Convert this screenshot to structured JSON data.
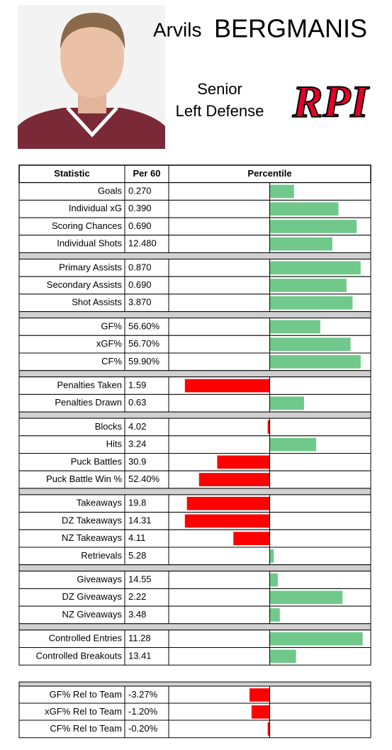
{
  "header": {
    "first_name": "Arvils",
    "last_name": "BERGMANIS",
    "class": "Senior",
    "position": "Left Defense",
    "logo": "RPI"
  },
  "table": {
    "columns": [
      "Statistic",
      "Per 60",
      "Percentile"
    ],
    "groups": [
      [
        {
          "stat": "Goals",
          "per60": "0.270",
          "percentile": 62
        },
        {
          "stat": "Individual xG",
          "per60": "0.390",
          "percentile": 84
        },
        {
          "stat": "Scoring Chances",
          "per60": "0.690",
          "percentile": 93
        },
        {
          "stat": "Individual Shots",
          "per60": "12.480",
          "percentile": 81
        }
      ],
      [
        {
          "stat": "Primary Assists",
          "per60": "0.870",
          "percentile": 95
        },
        {
          "stat": "Secondary Assists",
          "per60": "0.690",
          "percentile": 88
        },
        {
          "stat": "Shot Assists",
          "per60": "3.870",
          "percentile": 91
        }
      ],
      [
        {
          "stat": "GF%",
          "per60": "56.60%",
          "percentile": 75
        },
        {
          "stat": "xGF%",
          "per60": "56.70%",
          "percentile": 90
        },
        {
          "stat": "CF%",
          "per60": "59.90%",
          "percentile": 95
        }
      ],
      [
        {
          "stat": "Penalties Taken",
          "per60": "1.59",
          "percentile": 8
        },
        {
          "stat": "Penalties Drawn",
          "per60": "0.63",
          "percentile": 67
        }
      ],
      [
        {
          "stat": "Blocks",
          "per60": "4.02",
          "percentile": 49
        },
        {
          "stat": "Hits",
          "per60": "3.24",
          "percentile": 73
        },
        {
          "stat": "Puck Battles",
          "per60": "30.9",
          "percentile": 24
        },
        {
          "stat": "Puck Battle Win %",
          "per60": "52.40%",
          "percentile": 15
        }
      ],
      [
        {
          "stat": "Takeaways",
          "per60": "19.8",
          "percentile": 9
        },
        {
          "stat": "DZ Takeaways",
          "per60": "14.31",
          "percentile": 8
        },
        {
          "stat": "NZ Takeaways",
          "per60": "4.11",
          "percentile": 32
        },
        {
          "stat": "Retrievals",
          "per60": "5.28",
          "percentile": 52
        }
      ],
      [
        {
          "stat": "Giveaways",
          "per60": "14.55",
          "percentile": 54
        },
        {
          "stat": "DZ Giveaways",
          "per60": "2.22",
          "percentile": 86
        },
        {
          "stat": "NZ Giveaways",
          "per60": "3.48",
          "percentile": 55
        }
      ],
      [
        {
          "stat": "Controlled Entries",
          "per60": "11.28",
          "percentile": 96
        },
        {
          "stat": "Controlled Breakouts",
          "per60": "13.41",
          "percentile": 63
        }
      ]
    ]
  },
  "relative_table": {
    "rows": [
      {
        "stat": "GF% Rel to Team",
        "per60": "-3.27%",
        "percentile": 40
      },
      {
        "stat": "xGF% Rel to Team",
        "per60": "-1.20%",
        "percentile": 41
      },
      {
        "stat": "CF% Rel to Team",
        "per60": "-0.20%",
        "percentile": 49
      }
    ]
  }
}
